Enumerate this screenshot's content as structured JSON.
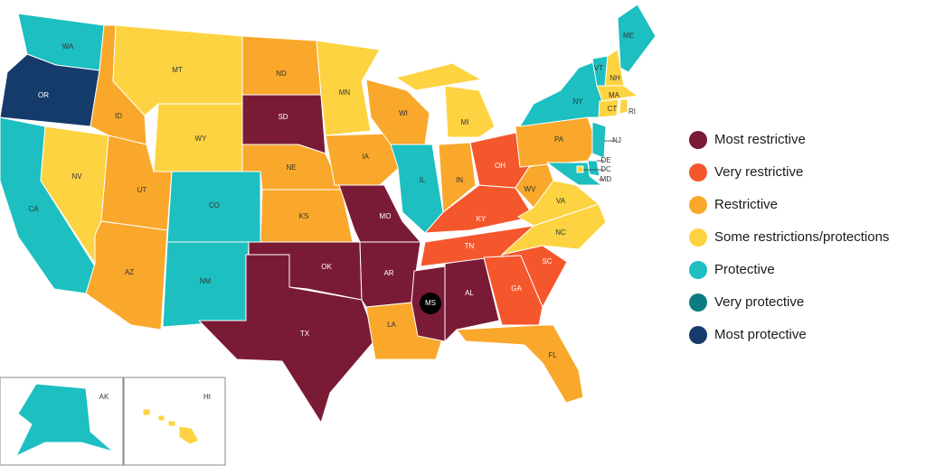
{
  "legend": [
    {
      "label": "Most restrictive",
      "color": "#7a1b36"
    },
    {
      "label": "Very restrictive",
      "color": "#f5572d"
    },
    {
      "label": "Restrictive",
      "color": "#f9a82c"
    },
    {
      "label": "Some restrictions/protections",
      "color": "#fdd341"
    },
    {
      "label": "Protective",
      "color": "#1dbfc0"
    },
    {
      "label": "Very protective",
      "color": "#0b7d80"
    },
    {
      "label": "Most protective",
      "color": "#153b6b"
    }
  ],
  "states": [
    {
      "label": "WA",
      "level": 4
    },
    {
      "label": "OR",
      "level": 6
    },
    {
      "label": "CA",
      "level": 4
    },
    {
      "label": "NV",
      "level": 3
    },
    {
      "label": "ID",
      "level": 2
    },
    {
      "label": "MT",
      "level": 3
    },
    {
      "label": "WY",
      "level": 3
    },
    {
      "label": "UT",
      "level": 2
    },
    {
      "label": "AZ",
      "level": 2
    },
    {
      "label": "CO",
      "level": 4
    },
    {
      "label": "NM",
      "level": 4
    },
    {
      "label": "ND",
      "level": 2
    },
    {
      "label": "SD",
      "level": 0
    },
    {
      "label": "NE",
      "level": 2
    },
    {
      "label": "KS",
      "level": 2
    },
    {
      "label": "OK",
      "level": 0
    },
    {
      "label": "TX",
      "level": 0
    },
    {
      "label": "MN",
      "level": 3
    },
    {
      "label": "IA",
      "level": 2
    },
    {
      "label": "MO",
      "level": 0
    },
    {
      "label": "AR",
      "level": 0
    },
    {
      "label": "LA",
      "level": 2
    },
    {
      "label": "MS",
      "level": 0
    },
    {
      "label": "AL",
      "level": 0
    },
    {
      "label": "TN",
      "level": 1
    },
    {
      "label": "KY",
      "level": 1
    },
    {
      "label": "IL",
      "level": 4
    },
    {
      "label": "WI",
      "level": 2
    },
    {
      "label": "MI",
      "level": 3
    },
    {
      "label": "IN",
      "level": 2
    },
    {
      "label": "OH",
      "level": 1
    },
    {
      "label": "WV",
      "level": 2
    },
    {
      "label": "VA",
      "level": 3
    },
    {
      "label": "NC",
      "level": 3
    },
    {
      "label": "SC",
      "level": 1
    },
    {
      "label": "GA",
      "level": 1
    },
    {
      "label": "FL",
      "level": 2
    },
    {
      "label": "PA",
      "level": 2
    },
    {
      "label": "NY",
      "level": 4
    },
    {
      "label": "VT",
      "level": 4
    },
    {
      "label": "NH",
      "level": 3
    },
    {
      "label": "ME",
      "level": 4
    },
    {
      "label": "MA",
      "level": 3
    },
    {
      "label": "CT",
      "level": 3
    },
    {
      "label": "RI",
      "level": 3
    },
    {
      "label": "NJ",
      "level": 4
    },
    {
      "label": "DE",
      "level": 4
    },
    {
      "label": "MD",
      "level": 4
    },
    {
      "label": "DC",
      "level": 3
    },
    {
      "label": "AK",
      "level": 4
    },
    {
      "label": "HI",
      "level": 3
    }
  ]
}
